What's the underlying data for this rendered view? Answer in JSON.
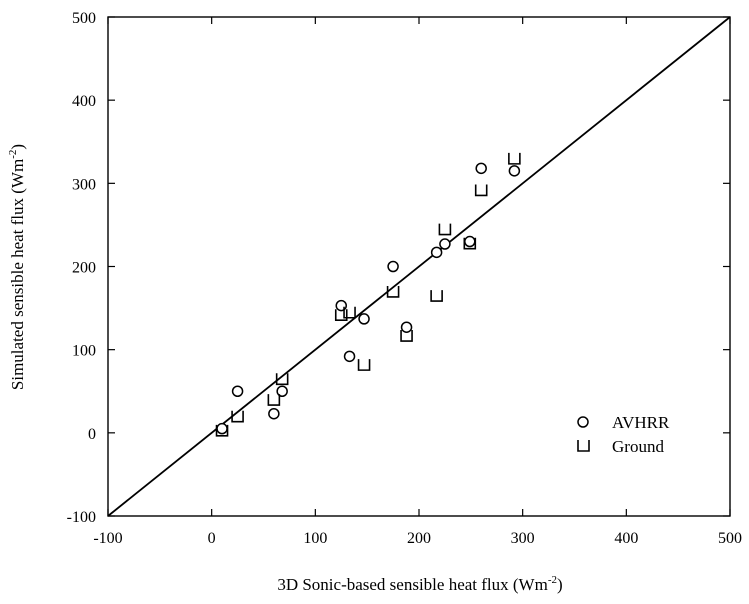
{
  "chart_data": {
    "type": "scatter",
    "title": "",
    "xlabel": "3D Sonic-based sensible heat flux (Wm",
    "xlabel_sup": "-2",
    "xlabel_end": ")",
    "ylabel": "Simulated sensible heat flux (Wm",
    "ylabel_sup": "-2",
    "ylabel_end": ")",
    "xlim": [
      -100,
      500
    ],
    "ylim": [
      -100,
      500
    ],
    "xticks": [
      -100,
      0,
      100,
      200,
      300,
      400,
      500
    ],
    "yticks": [
      -100,
      0,
      100,
      200,
      300,
      400,
      500
    ],
    "reference_line": {
      "x": [
        -100,
        500
      ],
      "y": [
        -100,
        500
      ]
    },
    "grid": false,
    "legend_position": "bottom-right",
    "series": [
      {
        "name": "AVHRR",
        "marker": "circle",
        "x": [
          10,
          25,
          60,
          68,
          125,
          133,
          147,
          175,
          188,
          217,
          225,
          249,
          260,
          292
        ],
        "y": [
          5,
          50,
          23,
          50,
          153,
          92,
          137,
          200,
          127,
          217,
          227,
          230,
          318,
          315
        ]
      },
      {
        "name": "Ground",
        "marker": "square",
        "x": [
          10,
          25,
          60,
          68,
          125,
          133,
          147,
          175,
          188,
          217,
          225,
          249,
          260,
          292
        ],
        "y": [
          3,
          20,
          40,
          65,
          142,
          145,
          82,
          170,
          117,
          165,
          245,
          228,
          292,
          330
        ]
      }
    ]
  }
}
